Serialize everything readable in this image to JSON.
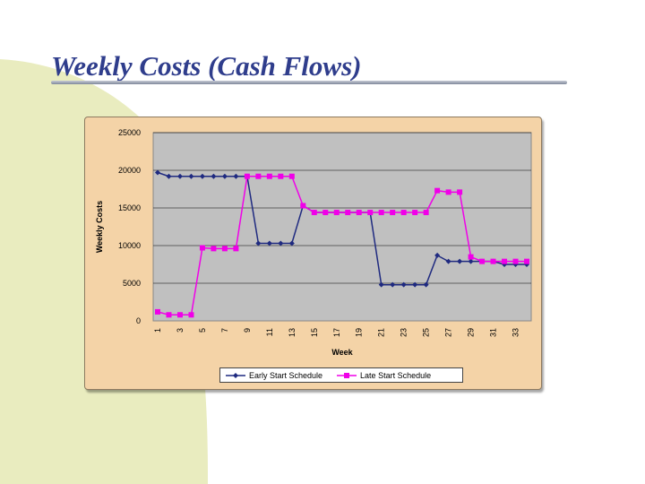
{
  "page": {
    "title": "Weekly Costs (Cash Flows)"
  },
  "colors": {
    "early": "#1f2a80",
    "late": "#f000e8",
    "plot_bg": "#c0c0c0",
    "panel_bg": "#f4d3a7",
    "title": "#2f3d8c"
  },
  "chart_data": {
    "type": "line",
    "title": "",
    "xlabel": "Week",
    "ylabel": "Weekly Costs",
    "ylim": [
      0,
      25000
    ],
    "yticks": [
      0,
      5000,
      10000,
      15000,
      20000,
      25000
    ],
    "x": [
      1,
      2,
      3,
      4,
      5,
      6,
      7,
      8,
      9,
      10,
      11,
      12,
      13,
      14,
      15,
      16,
      17,
      18,
      19,
      20,
      21,
      22,
      23,
      24,
      25,
      26,
      27,
      28,
      29,
      30,
      31,
      32,
      33,
      34
    ],
    "xtick_labels": [
      "1",
      "3",
      "5",
      "7",
      "9",
      "11",
      "13",
      "15",
      "17",
      "19",
      "21",
      "23",
      "25",
      "27",
      "29",
      "31",
      "33"
    ],
    "grid": true,
    "legend_position": "bottom",
    "series": [
      {
        "name": "Early Start Schedule",
        "color": "#1f2a80",
        "marker": "diamond",
        "values": [
          19700,
          19200,
          19200,
          19200,
          19200,
          19200,
          19200,
          19200,
          19200,
          10300,
          10300,
          10300,
          10300,
          15300,
          14400,
          14400,
          14400,
          14400,
          14400,
          14400,
          4800,
          4800,
          4800,
          4800,
          4800,
          8700,
          7900,
          7900,
          7900,
          7900,
          7900,
          7500,
          7500,
          7500
        ]
      },
      {
        "name": "Late Start Schedule",
        "color": "#f000e8",
        "marker": "square",
        "values": [
          1200,
          800,
          800,
          800,
          9700,
          9600,
          9600,
          9600,
          19200,
          19200,
          19200,
          19200,
          19200,
          15300,
          14400,
          14400,
          14400,
          14400,
          14400,
          14400,
          14400,
          14400,
          14400,
          14400,
          14400,
          17300,
          17100,
          17100,
          8500,
          7900,
          7900,
          7900,
          7900,
          7900
        ]
      }
    ]
  }
}
